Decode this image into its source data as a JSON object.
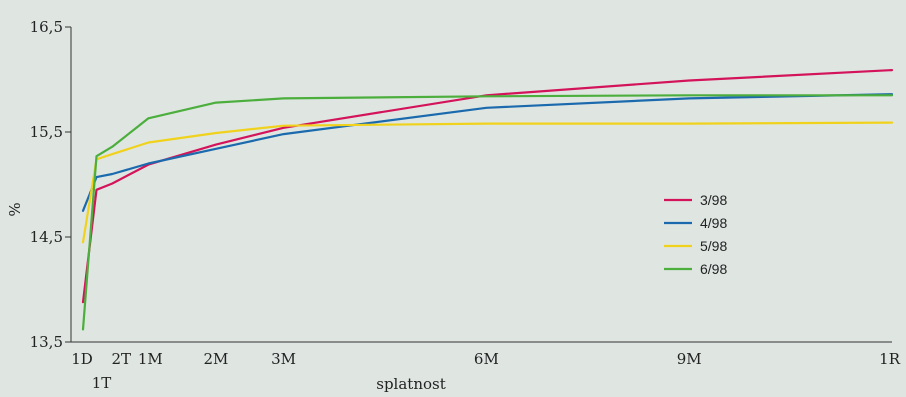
{
  "chart_data": {
    "type": "line",
    "title": "",
    "xlabel": "splatnost",
    "ylabel": "%",
    "categories": [
      "1D",
      "1T",
      "2T",
      "1M",
      "2M",
      "3M",
      "6M",
      "9M",
      "1R"
    ],
    "x_days": [
      1,
      7,
      14,
      30,
      60,
      90,
      180,
      270,
      360
    ],
    "ylim": [
      13.5,
      16.5
    ],
    "yticks": [
      "13,5",
      "14,5",
      "15,5",
      "16,5"
    ],
    "ytick_values": [
      13.5,
      14.5,
      15.5,
      16.5
    ],
    "grid": false,
    "legend_position": "right",
    "series": [
      {
        "name": "3/98",
        "color": "#d4145a",
        "values": [
          13.88,
          14.95,
          15.01,
          15.19,
          15.38,
          15.54,
          15.85,
          15.99,
          16.09
        ]
      },
      {
        "name": "4/98",
        "color": "#1b6aad",
        "values": [
          14.75,
          15.07,
          15.1,
          15.2,
          15.34,
          15.48,
          15.73,
          15.82,
          15.86
        ]
      },
      {
        "name": "5/98",
        "color": "#f0d21c",
        "values": [
          14.45,
          15.24,
          15.29,
          15.4,
          15.49,
          15.56,
          15.58,
          15.58,
          15.59
        ]
      },
      {
        "name": "6/98",
        "color": "#4cae3c",
        "values": [
          13.62,
          15.27,
          15.36,
          15.63,
          15.78,
          15.82,
          15.84,
          15.85,
          15.85
        ]
      }
    ]
  }
}
